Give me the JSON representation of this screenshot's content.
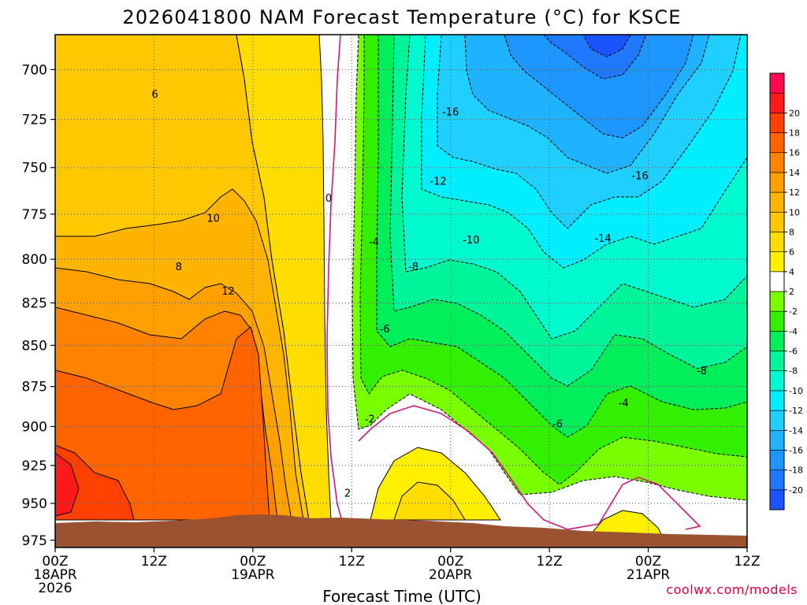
{
  "chart_data": {
    "type": "contour",
    "title": "2026041800 NAM Forecast Temperature (°C) for KSCE",
    "xlabel": "Forecast Time (UTC)",
    "ylabel": "",
    "y_scale": "log",
    "y_reversed": true,
    "ylim": [
      683,
      980
    ],
    "y_ticks": [
      700,
      725,
      750,
      775,
      800,
      825,
      850,
      875,
      900,
      925,
      950,
      975
    ],
    "x_range_hours": [
      0,
      84
    ],
    "x_ticks": [
      {
        "hour": 0,
        "line1": "00Z",
        "line2": "18APR",
        "line3": "2026"
      },
      {
        "hour": 12,
        "line1": "12Z",
        "line2": "",
        "line3": ""
      },
      {
        "hour": 24,
        "line1": "00Z",
        "line2": "19APR",
        "line3": ""
      },
      {
        "hour": 36,
        "line1": "12Z",
        "line2": "",
        "line3": ""
      },
      {
        "hour": 48,
        "line1": "00Z",
        "line2": "20APR",
        "line3": ""
      },
      {
        "hour": 60,
        "line1": "12Z",
        "line2": "",
        "line3": ""
      },
      {
        "hour": 72,
        "line1": "00Z",
        "line2": "21APR",
        "line3": ""
      },
      {
        "hour": 84,
        "line1": "12Z",
        "line2": "",
        "line3": ""
      }
    ],
    "grid": true,
    "colorbar": {
      "placement": "right",
      "levels": [
        -22,
        -20,
        -18,
        -16,
        -14,
        -12,
        -10,
        -8,
        -6,
        -4,
        -2,
        2,
        4,
        6,
        8,
        10,
        12,
        14,
        16,
        18,
        20,
        22
      ],
      "labels": [
        "-20",
        "-18",
        "-16",
        "-14",
        "-12",
        "-10",
        "-8",
        "-6",
        "-4",
        "-2",
        "2",
        "4",
        "6",
        "8",
        "10",
        "12",
        "14",
        "16",
        "18",
        "20"
      ],
      "colors": [
        "#1a54ff",
        "#1f78ff",
        "#1e96ff",
        "#1fb3ff",
        "#1fd0ff",
        "#00eeff",
        "#00fad0",
        "#00f59a",
        "#00ee5a",
        "#32f000",
        "#78ff00",
        "#ffffff",
        "#fff000",
        "#ffdd00",
        "#ffc800",
        "#ffb400",
        "#ffa000",
        "#ff8200",
        "#ff6400",
        "#ff4000",
        "#ff1a1a",
        "#ff0a50"
      ]
    },
    "contour_labels": [
      {
        "text": "6",
        "hour": 12.1,
        "p": 712
      },
      {
        "text": "10",
        "hour": 19.2,
        "p": 777
      },
      {
        "text": "8",
        "hour": 15.0,
        "p": 804
      },
      {
        "text": "12",
        "hour": 21.0,
        "p": 818
      },
      {
        "text": "0",
        "hour": 33.2,
        "p": 766
      },
      {
        "text": "2",
        "hour": 35.5,
        "p": 943
      },
      {
        "text": "-2",
        "hour": 38.2,
        "p": 895
      },
      {
        "text": "-4",
        "hour": 38.7,
        "p": 790
      },
      {
        "text": "-6",
        "hour": 40.0,
        "p": 840
      },
      {
        "text": "-8",
        "hour": 43.5,
        "p": 804
      },
      {
        "text": "-12",
        "hour": 46.5,
        "p": 757
      },
      {
        "text": "-16",
        "hour": 48.0,
        "p": 721
      },
      {
        "text": "-10",
        "hour": 50.5,
        "p": 789
      },
      {
        "text": "-6",
        "hour": 61.0,
        "p": 898
      },
      {
        "text": "-4",
        "hour": 69.0,
        "p": 885
      },
      {
        "text": "-14",
        "hour": 66.5,
        "p": 788
      },
      {
        "text": "-16",
        "hour": 71.0,
        "p": 754
      },
      {
        "text": "-8",
        "hour": 78.5,
        "p": 865
      }
    ],
    "terrain_color": "#9a5230",
    "credit": "coolwx.com/models",
    "credit_color": "#e0003a"
  }
}
